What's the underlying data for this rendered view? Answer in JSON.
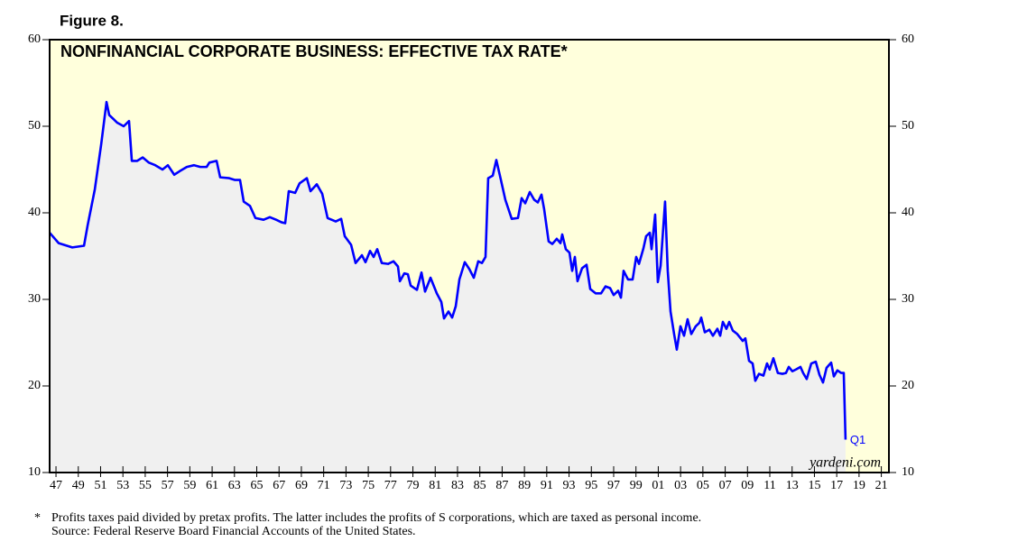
{
  "chart_data": {
    "type": "line",
    "figure_label": "Figure 8.",
    "title": "NONFINANCIAL CORPORATE BUSINESS: EFFECTIVE TAX RATE*",
    "color": "#0000ff",
    "plot_background": "#ffffdc",
    "area_color": "#f0f0f0",
    "x": [
      1946.43,
      1947.24,
      1948.46,
      1949.51,
      1949.83,
      1950.48,
      1951.05,
      1951.53,
      1951.77,
      1952.5,
      1953.07,
      1953.55,
      1953.8,
      1954.28,
      1954.77,
      1955.33,
      1955.9,
      1956.55,
      1957.03,
      1957.6,
      1958.08,
      1958.73,
      1959.38,
      1959.94,
      1960.51,
      1960.75,
      1961.4,
      1961.72,
      1962.53,
      1963.02,
      1963.5,
      1963.83,
      1964.39,
      1964.88,
      1965.61,
      1966.17,
      1966.74,
      1967.23,
      1967.55,
      1967.87,
      1968.44,
      1968.84,
      1969.49,
      1969.82,
      1970.38,
      1970.87,
      1971.35,
      1972.08,
      1972.57,
      1972.89,
      1973.46,
      1973.86,
      1974.43,
      1974.75,
      1975.16,
      1975.48,
      1975.8,
      1976.21,
      1976.77,
      1977.26,
      1977.66,
      1977.83,
      1978.23,
      1978.55,
      1978.8,
      1979.36,
      1979.77,
      1980.09,
      1980.58,
      1981.14,
      1981.55,
      1981.79,
      1982.19,
      1982.52,
      1982.84,
      1983.17,
      1983.65,
      1984.06,
      1984.46,
      1984.86,
      1985.19,
      1985.51,
      1985.75,
      1986.16,
      1986.48,
      1986.89,
      1987.29,
      1987.86,
      1988.42,
      1988.75,
      1989.07,
      1989.48,
      1989.88,
      1990.2,
      1990.53,
      1990.77,
      1991.17,
      1991.5,
      1991.9,
      1992.23,
      1992.39,
      1992.71,
      1993.04,
      1993.28,
      1993.52,
      1993.76,
      1994.17,
      1994.57,
      1994.9,
      1995.38,
      1995.87,
      1996.27,
      1996.68,
      1997,
      1997.4,
      1997.65,
      1997.89,
      1998.29,
      1998.7,
      1999.02,
      1999.27,
      1999.67,
      1999.91,
      2000.24,
      2000.4,
      2000.72,
      2000.96,
      2001.21,
      2001.61,
      2001.85,
      2002.1,
      2002.42,
      2002.66,
      2002.99,
      2003.31,
      2003.63,
      2003.96,
      2004.36,
      2004.69,
      2004.85,
      2005.17,
      2005.58,
      2005.9,
      2006.3,
      2006.55,
      2006.79,
      2007.11,
      2007.36,
      2007.68,
      2008.08,
      2008.57,
      2008.81,
      2009.14,
      2009.46,
      2009.7,
      2010.03,
      2010.43,
      2010.75,
      2010.99,
      2011.32,
      2011.72,
      2012.13,
      2012.45,
      2012.7,
      2013.02,
      2013.34,
      2013.75,
      2013.99,
      2014.31,
      2014.72,
      2015.12,
      2015.45,
      2015.77,
      2016.09,
      2016.5,
      2016.74,
      2017.06,
      2017.39,
      2017.63,
      2017.79
    ],
    "values": [
      37.7,
      36.5,
      36.0,
      36.2,
      38.5,
      42.7,
      47.9,
      52.8,
      51.3,
      50.4,
      50.0,
      50.6,
      46.0,
      46.0,
      46.4,
      45.8,
      45.5,
      45.0,
      45.5,
      44.4,
      44.8,
      45.3,
      45.5,
      45.3,
      45.3,
      45.8,
      46.0,
      44.1,
      44.0,
      43.8,
      43.8,
      41.3,
      40.8,
      39.4,
      39.2,
      39.5,
      39.2,
      38.9,
      38.8,
      42.5,
      42.3,
      43.4,
      44.0,
      42.5,
      43.3,
      42.2,
      39.4,
      39.0,
      39.3,
      37.3,
      36.3,
      34.2,
      35.1,
      34.3,
      35.6,
      34.9,
      35.8,
      34.2,
      34.1,
      34.4,
      33.8,
      32.1,
      33.0,
      32.9,
      31.6,
      31.1,
      33.1,
      30.9,
      32.5,
      30.7,
      29.7,
      27.8,
      28.6,
      27.9,
      29.2,
      32.3,
      34.3,
      33.5,
      32.5,
      34.4,
      34.2,
      34.9,
      44.0,
      44.3,
      46.1,
      43.8,
      41.5,
      39.3,
      39.4,
      41.7,
      41.1,
      42.4,
      41.5,
      41.2,
      42.1,
      40.4,
      36.7,
      36.4,
      37.0,
      36.5,
      37.5,
      35.8,
      35.4,
      33.3,
      34.9,
      32.1,
      33.6,
      34.0,
      31.2,
      30.7,
      30.7,
      31.5,
      31.3,
      30.5,
      31.0,
      30.2,
      33.3,
      32.3,
      32.3,
      34.9,
      34.1,
      35.9,
      37.3,
      37.7,
      35.8,
      39.8,
      32.0,
      33.9,
      41.3,
      33.3,
      28.6,
      26.0,
      24.2,
      26.9,
      25.8,
      27.7,
      26.0,
      26.9,
      27.3,
      27.9,
      26.2,
      26.5,
      25.8,
      26.6,
      25.8,
      27.4,
      26.6,
      27.4,
      26.4,
      26.0,
      25.2,
      25.5,
      22.9,
      22.6,
      20.6,
      21.4,
      21.2,
      22.6,
      21.9,
      23.2,
      21.5,
      21.4,
      21.5,
      22.2,
      21.7,
      21.9,
      22.2,
      21.5,
      20.8,
      22.6,
      22.8,
      21.3,
      20.4,
      22.1,
      22.7,
      21.1,
      21.8,
      21.5,
      21.5,
      13.8
    ],
    "last_point_label": "Q1",
    "watermark": "yardeni.com",
    "xlim": [
      1946.43,
      2021.68
    ],
    "ylim": [
      10,
      60
    ],
    "yticks": [
      10,
      20,
      30,
      40,
      50,
      60
    ],
    "xticks": [
      {
        "value": 1947,
        "label": "47"
      },
      {
        "value": 1949,
        "label": "49"
      },
      {
        "value": 1951,
        "label": "51"
      },
      {
        "value": 1953,
        "label": "53"
      },
      {
        "value": 1955,
        "label": "55"
      },
      {
        "value": 1957,
        "label": "57"
      },
      {
        "value": 1959,
        "label": "59"
      },
      {
        "value": 1961,
        "label": "61"
      },
      {
        "value": 1963,
        "label": "63"
      },
      {
        "value": 1965,
        "label": "65"
      },
      {
        "value": 1967,
        "label": "67"
      },
      {
        "value": 1969,
        "label": "69"
      },
      {
        "value": 1971,
        "label": "71"
      },
      {
        "value": 1973,
        "label": "73"
      },
      {
        "value": 1975,
        "label": "75"
      },
      {
        "value": 1977,
        "label": "77"
      },
      {
        "value": 1979,
        "label": "79"
      },
      {
        "value": 1981,
        "label": "81"
      },
      {
        "value": 1983,
        "label": "83"
      },
      {
        "value": 1985,
        "label": "85"
      },
      {
        "value": 1987,
        "label": "87"
      },
      {
        "value": 1989,
        "label": "89"
      },
      {
        "value": 1991,
        "label": "91"
      },
      {
        "value": 1993,
        "label": "93"
      },
      {
        "value": 1995,
        "label": "95"
      },
      {
        "value": 1997,
        "label": "97"
      },
      {
        "value": 1999,
        "label": "99"
      },
      {
        "value": 2001,
        "label": "01"
      },
      {
        "value": 2003,
        "label": "03"
      },
      {
        "value": 2005,
        "label": "05"
      },
      {
        "value": 2007,
        "label": "07"
      },
      {
        "value": 2009,
        "label": "09"
      },
      {
        "value": 2011,
        "label": "11"
      },
      {
        "value": 2013,
        "label": "13"
      },
      {
        "value": 2015,
        "label": "15"
      },
      {
        "value": 2017,
        "label": "17"
      },
      {
        "value": 2019,
        "label": "19"
      },
      {
        "value": 2021,
        "label": "21"
      }
    ],
    "footnote_marker": "*",
    "footnote": "Profits taxes paid divided by pretax profits. The latter includes the profits of S corporations, which are taxed as personal income.",
    "source": "Source: Federal Reserve Board Financial Accounts of the United States."
  }
}
